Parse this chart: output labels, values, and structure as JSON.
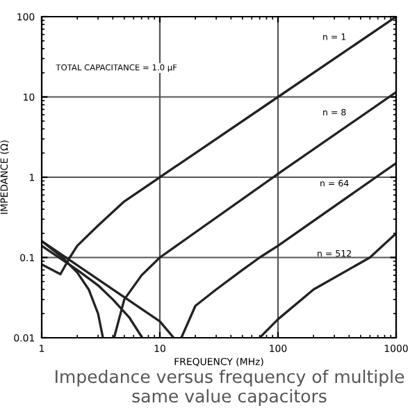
{
  "chart_data": {
    "type": "line",
    "xlabel": "FREQUENCY (MHz)",
    "ylabel": "IMPEDANCE (Ω)",
    "log": "xy",
    "xlim": [
      1,
      1000
    ],
    "ylim": [
      0.01,
      100
    ],
    "xticks": [
      1,
      10,
      100,
      1000
    ],
    "yticks": [
      0.01,
      0.1,
      1,
      10,
      100
    ],
    "grid": true,
    "legend": false,
    "marker": "none",
    "line_style": "solid",
    "series": [
      {
        "name": "n = 1",
        "color": "#222222",
        "x": [
          1,
          1.44,
          1.73,
          2,
          3,
          5,
          10,
          100,
          1000
        ],
        "values": [
          0.082,
          0.062,
          0.1,
          0.14,
          0.25,
          0.5,
          1,
          10,
          100
        ]
      },
      {
        "name": "n = 8",
        "color": "#222222",
        "x": [
          1,
          1.5,
          2,
          2.5,
          3,
          3.3,
          3.7,
          4.1,
          5,
          7,
          10,
          100,
          1000
        ],
        "values": [
          0.16,
          0.1,
          0.065,
          0.04,
          0.02,
          0.01,
          null,
          0.01,
          0.03,
          0.06,
          0.1,
          1.1,
          11.5
        ]
      },
      {
        "name": "n = 64",
        "color": "#222222",
        "x": [
          1,
          2,
          3,
          4,
          5.5,
          7.1,
          11,
          15.2,
          20,
          30,
          50,
          70,
          100,
          1000
        ],
        "values": [
          0.14,
          0.07,
          0.045,
          0.03,
          0.018,
          0.01,
          null,
          0.01,
          0.025,
          0.04,
          0.07,
          0.1,
          0.14,
          1.5
        ]
      },
      {
        "name": "n = 512",
        "color": "#222222",
        "x": [
          1,
          2,
          5,
          10,
          13.1,
          40,
          70,
          100,
          200,
          600,
          1000
        ],
        "values": [
          0.16,
          0.08,
          0.032,
          0.016,
          0.01,
          null,
          0.01,
          0.017,
          0.04,
          0.1,
          0.2
        ]
      }
    ],
    "annotations": [
      "TOTAL CAPACITANCE = 1.0 µF",
      "Impedance versus frequency of multiple same value capacitors"
    ]
  }
}
